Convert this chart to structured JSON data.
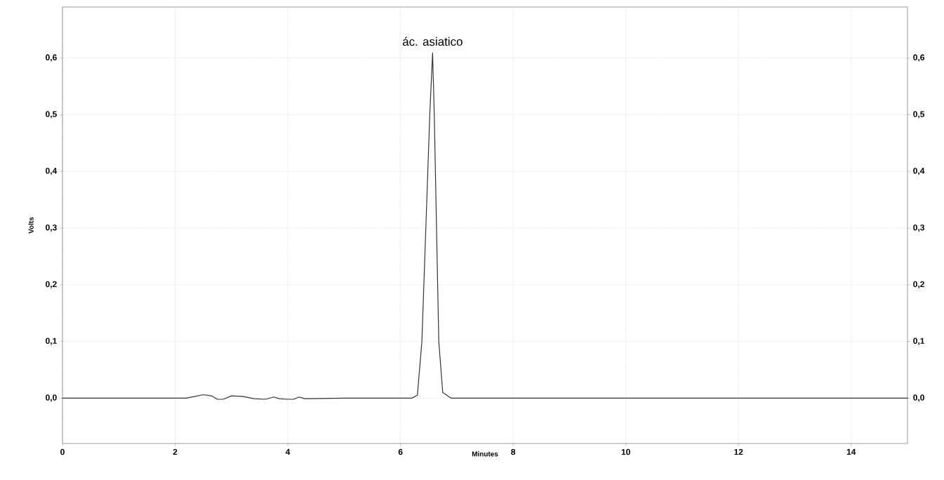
{
  "chart_data": {
    "type": "line",
    "xlabel": "Minutes",
    "ylabel": "Volts",
    "annotations": [
      {
        "text": "ác. asiatico",
        "x": 6.57,
        "y": 0.609
      }
    ],
    "x": [
      0,
      1,
      2,
      2.2,
      2.35,
      2.5,
      2.65,
      2.75,
      2.85,
      3.0,
      3.2,
      3.4,
      3.6,
      3.75,
      3.85,
      4.0,
      4.1,
      4.2,
      4.3,
      5.0,
      6.0,
      6.2,
      6.3,
      6.38,
      6.45,
      6.52,
      6.57,
      6.6,
      6.64,
      6.68,
      6.75,
      6.9,
      8,
      10,
      12,
      15
    ],
    "series": [
      {
        "color": "#333333",
        "values": [
          0,
          0,
          0,
          0,
          0.003,
          0.006,
          0.004,
          -0.002,
          -0.002,
          0.004,
          0.003,
          -0.001,
          -0.002,
          0.002,
          -0.001,
          -0.002,
          -0.002,
          0.002,
          -0.001,
          0,
          0,
          0,
          0.005,
          0.1,
          0.3,
          0.5,
          0.609,
          0.5,
          0.3,
          0.1,
          0.01,
          0,
          0,
          0,
          0,
          0
        ]
      }
    ],
    "xlim": [
      0,
      15
    ],
    "ylim": [
      -0.08,
      0.69
    ],
    "y2lim": [
      -0.08,
      0.69
    ],
    "xticks": [
      0,
      2,
      4,
      6,
      8,
      10,
      12,
      14
    ],
    "yticks": [
      {
        "value": 0,
        "label": "0,0"
      },
      {
        "value": 0.1,
        "label": "0,1"
      },
      {
        "value": 0.2,
        "label": "0,2"
      },
      {
        "value": 0.3,
        "label": "0,3"
      },
      {
        "value": 0.4,
        "label": "0,4"
      },
      {
        "value": 0.5,
        "label": "0,5"
      },
      {
        "value": 0.6,
        "label": "0,6"
      }
    ],
    "y2ticks": [
      {
        "value": 0,
        "label": "0,0"
      },
      {
        "value": 0.1,
        "label": "0,1"
      },
      {
        "value": 0.2,
        "label": "0,2"
      },
      {
        "value": 0.3,
        "label": "0,3"
      },
      {
        "value": 0.4,
        "label": "0,4"
      },
      {
        "value": 0.5,
        "label": "0,5"
      },
      {
        "value": 0.6,
        "label": "0,6"
      }
    ],
    "grid": true,
    "marker": "none",
    "line_style": "solid"
  }
}
